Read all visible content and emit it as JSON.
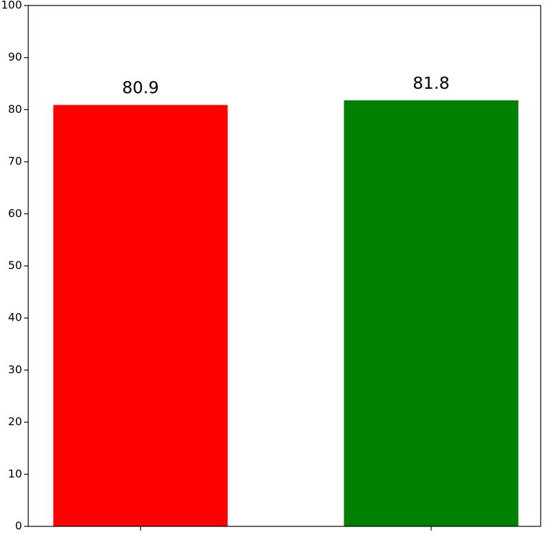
{
  "chart_data": {
    "type": "bar",
    "categories": [
      null,
      null
    ],
    "values": [
      80.9,
      81.8
    ],
    "colors": [
      "#ff0000",
      "#008000"
    ],
    "ylim": [
      0,
      100
    ],
    "yticks": [
      0,
      10,
      20,
      30,
      40,
      50,
      60,
      70,
      80,
      90,
      100
    ]
  }
}
